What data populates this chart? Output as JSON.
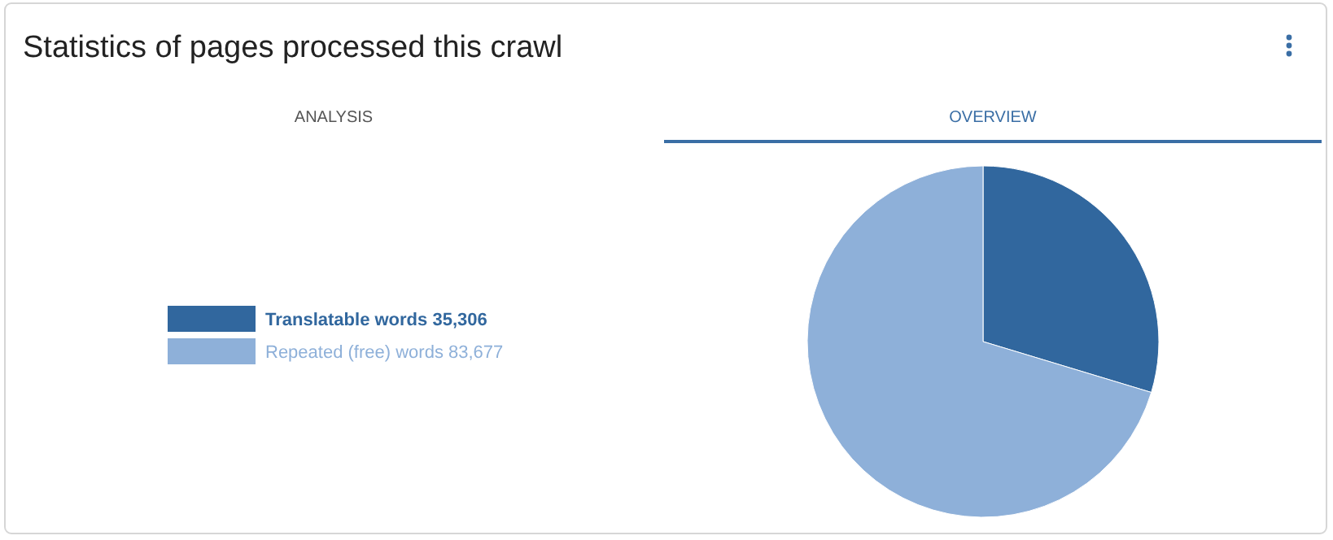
{
  "chart_data": {
    "type": "pie",
    "title": "Statistics of pages processed this crawl",
    "categories": [
      "Translatable words",
      "Repeated (free) words"
    ],
    "values": [
      35306,
      83677
    ],
    "colors": [
      "#31679e",
      "#8eb0d9"
    ],
    "value_labels": [
      "35,306",
      "83,677"
    ],
    "legend": "left",
    "annotations": [
      "ANALYSIS",
      "OVERVIEW"
    ]
  }
}
